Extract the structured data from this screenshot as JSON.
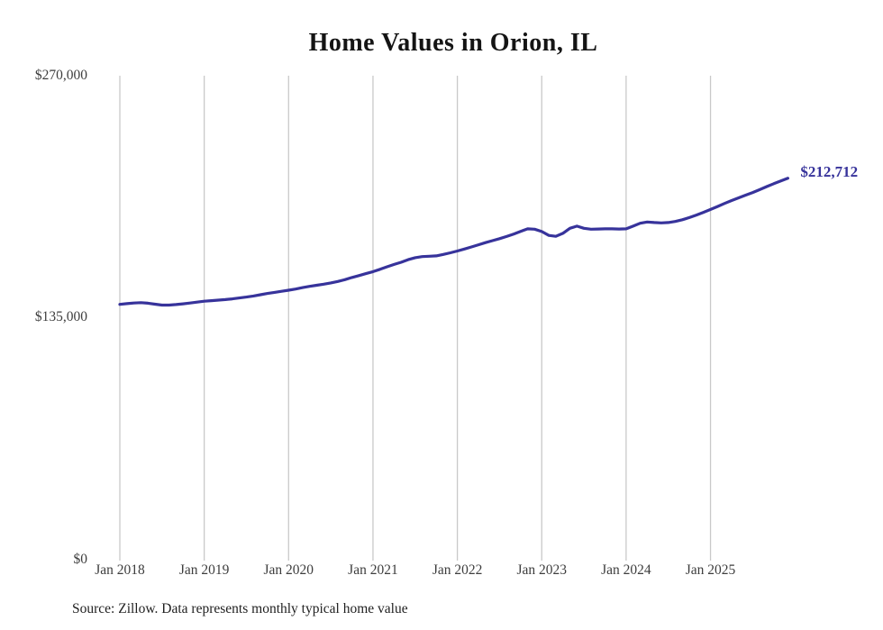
{
  "page": {
    "source_note": "Source: Zillow. Data represents monthly typical home value"
  },
  "colors": {
    "background": "#ffffff",
    "line": "#37339b",
    "end_label": "#37339b",
    "grid": "#c9c9c9",
    "tick_text": "#3d3d3d",
    "title_text": "#141414",
    "source_text": "#1f1f1f"
  },
  "chart_data": {
    "type": "line",
    "title": "Home Values in Orion, IL",
    "xlabel": "",
    "ylabel": "",
    "ylim": [
      0,
      270000
    ],
    "grid": "vertical-only",
    "legend": "none",
    "end_point_label": "$212,712",
    "y_ticks": [
      {
        "value": 0,
        "label": "$0"
      },
      {
        "value": 135000,
        "label": "$135,000"
      },
      {
        "value": 270000,
        "label": "$270,000"
      }
    ],
    "x_ticks": [
      {
        "month_index": 0,
        "label": "Jan 2018"
      },
      {
        "month_index": 12,
        "label": "Jan 2019"
      },
      {
        "month_index": 24,
        "label": "Jan 2020"
      },
      {
        "month_index": 36,
        "label": "Jan 2021"
      },
      {
        "month_index": 48,
        "label": "Jan 2022"
      },
      {
        "month_index": 60,
        "label": "Jan 2023"
      },
      {
        "month_index": 72,
        "label": "Jan 2024"
      },
      {
        "month_index": 84,
        "label": "Jan 2025"
      }
    ],
    "series": [
      {
        "name": "Typical home value",
        "unit": "USD",
        "frequency": "monthly",
        "start": "Jan 2018",
        "end": "Dec 2025",
        "values": [
          142300,
          142700,
          143100,
          143300,
          143000,
          142400,
          141900,
          141900,
          142200,
          142600,
          143100,
          143600,
          144100,
          144400,
          144700,
          145000,
          145400,
          145900,
          146400,
          147000,
          147700,
          148400,
          149000,
          149600,
          150200,
          150900,
          151700,
          152400,
          153000,
          153600,
          154300,
          155100,
          156100,
          157300,
          158400,
          159500,
          160600,
          161900,
          163300,
          164600,
          165800,
          167300,
          168400,
          169000,
          169200,
          169400,
          170200,
          171100,
          172100,
          173200,
          174400,
          175600,
          176800,
          177900,
          179000,
          180200,
          181600,
          183100,
          184500,
          184300,
          183000,
          180800,
          180300,
          182000,
          184800,
          186000,
          184800,
          184300,
          184400,
          184500,
          184500,
          184400,
          184500,
          186000,
          187600,
          188300,
          188000,
          187800,
          188000,
          188600,
          189600,
          190800,
          192200,
          193700,
          195300,
          197000,
          198700,
          200300,
          201800,
          203300,
          204800,
          206400,
          208100,
          209700,
          211200,
          212712
        ]
      }
    ]
  }
}
